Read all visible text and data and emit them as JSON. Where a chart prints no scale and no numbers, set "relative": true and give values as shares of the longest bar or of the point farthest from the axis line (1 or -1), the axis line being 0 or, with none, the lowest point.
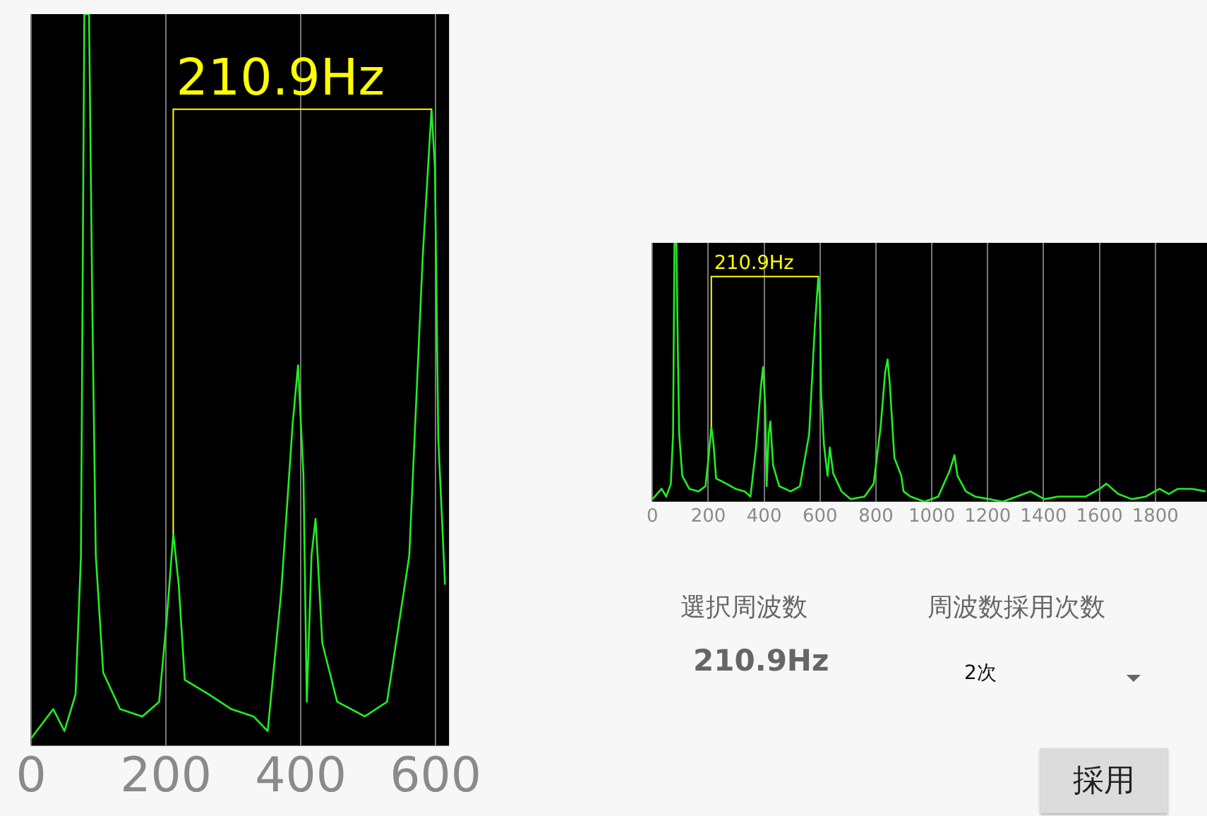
{
  "chart_data": [
    {
      "type": "line",
      "relative": true,
      "xlim": [
        0,
        620
      ],
      "xticks": [
        0,
        200,
        400,
        600
      ],
      "grid": "x",
      "marker": "none",
      "ref_lines": [
        {
          "axis": "x",
          "value": 210.9,
          "label": "210.9Hz",
          "color": "#ffff00"
        }
      ],
      "x": [
        0,
        16.5,
        33,
        49.5,
        66,
        74,
        79,
        86,
        91,
        96,
        107,
        132,
        165,
        190,
        201,
        211,
        219,
        228,
        264,
        297,
        330,
        351,
        371,
        388,
        396,
        404,
        409,
        416,
        422,
        432,
        454,
        495,
        528,
        561,
        581,
        594,
        599,
        604,
        614
      ],
      "series": [
        {
          "color": "#22ee22",
          "values": [
            0.01,
            0.03,
            0.05,
            0.02,
            0.07,
            0.26,
            1,
            1,
            0.59,
            0.26,
            0.1,
            0.05,
            0.04,
            0.06,
            0.17,
            0.29,
            0.22,
            0.09,
            0.07,
            0.05,
            0.04,
            0.02,
            0.21,
            0.44,
            0.52,
            0.37,
            0.06,
            0.26,
            0.31,
            0.14,
            0.06,
            0.04,
            0.06,
            0.26,
            0.67,
            0.87,
            0.79,
            0.42,
            0.22
          ]
        }
      ]
    },
    {
      "type": "line",
      "relative": true,
      "xlim": [
        0,
        1985
      ],
      "xticks": [
        0,
        200,
        400,
        600,
        800,
        1000,
        1200,
        1400,
        1600,
        1800
      ],
      "grid": "x",
      "marker": "none",
      "ref_lines": [
        {
          "axis": "x",
          "value": 210.9,
          "label": "210.9Hz",
          "color": "#ffff00"
        }
      ],
      "x": [
        0,
        16.5,
        33,
        49.5,
        66,
        74,
        79,
        86,
        91,
        96,
        107,
        132,
        165,
        190,
        201,
        211,
        219,
        228,
        264,
        297,
        330,
        351,
        371,
        388,
        396,
        404,
        409,
        416,
        422,
        432,
        454,
        495,
        528,
        561,
        581,
        594,
        599,
        604,
        614,
        627,
        635,
        647,
        677,
        710,
        759,
        792,
        817,
        833,
        842,
        850,
        866,
        891,
        899,
        924,
        974,
        1023,
        1064,
        1081,
        1092,
        1122,
        1155,
        1205,
        1254,
        1304,
        1353,
        1403,
        1452,
        1502,
        1551,
        1601,
        1625,
        1667,
        1716,
        1766,
        1815,
        1848,
        1881,
        1931,
        1980
      ],
      "series": [
        {
          "color": "#22ee22",
          "values": [
            0.01,
            0.03,
            0.05,
            0.02,
            0.07,
            0.26,
            1,
            1,
            0.59,
            0.26,
            0.1,
            0.05,
            0.04,
            0.06,
            0.17,
            0.29,
            0.22,
            0.09,
            0.07,
            0.05,
            0.04,
            0.02,
            0.21,
            0.44,
            0.52,
            0.37,
            0.06,
            0.26,
            0.31,
            0.14,
            0.06,
            0.04,
            0.06,
            0.26,
            0.67,
            0.87,
            0.79,
            0.42,
            0.22,
            0.1,
            0.21,
            0.11,
            0.04,
            0.01,
            0.02,
            0.07,
            0.29,
            0.5,
            0.55,
            0.45,
            0.17,
            0.1,
            0.04,
            0.02,
            0,
            0.02,
            0.12,
            0.18,
            0.1,
            0.04,
            0.02,
            0.01,
            0,
            0.02,
            0.04,
            0.01,
            0.02,
            0.02,
            0.02,
            0.05,
            0.07,
            0.03,
            0.01,
            0.02,
            0.05,
            0.03,
            0.05,
            0.05,
            0.04
          ]
        }
      ]
    },
    {
      "type": "other",
      "annotations": [
        "選択周波数",
        "210.9Hz",
        "周波数採用次数",
        "2次",
        "採用"
      ]
    }
  ]
}
